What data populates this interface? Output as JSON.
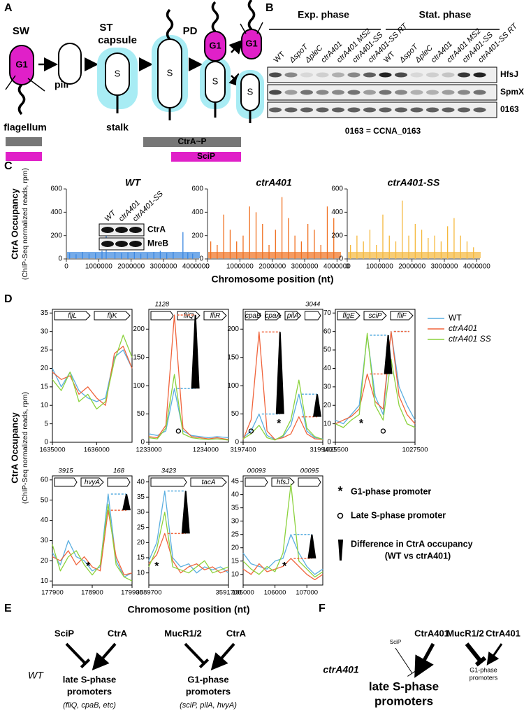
{
  "panel_a": {
    "label": "A",
    "stage_labels": [
      "SW",
      "ST",
      "PD"
    ],
    "capsule": "capsule",
    "pili": "pili",
    "flagellum": "flagellum",
    "stalk": "stalk",
    "g1": "G1",
    "s": "S",
    "bars": [
      "CtrA~P",
      "SciP"
    ]
  },
  "panel_b": {
    "label": "B",
    "phases": [
      "Exp. phase",
      "Stat. phase"
    ],
    "lanes": [
      "WT",
      "ΔspoT",
      "ΔpleC",
      "ctrA401",
      "ctrA401 MS2",
      "ctrA401-SS",
      "ctrA401-SS RT",
      "WT",
      "ΔspoT",
      "ΔpleC",
      "ctrA401",
      "ctrA401 MS2",
      "ctrA401-SS",
      "ctrA401-SS RT"
    ],
    "blots": [
      "HfsJ",
      "SpmX",
      "0163"
    ],
    "note": "0163 = CCNA_0163"
  },
  "panel_c": {
    "label": "C",
    "y_label": "CtrA Occupancy",
    "y_sublabel": "(ChIP-Seq normalized reads, rpm)",
    "x_label": "Chromosome position (nt)",
    "inset_lanes": [
      "WT",
      "ctrA401",
      "ctrA401-SS"
    ],
    "inset_blots": [
      "CtrA",
      "MreB"
    ],
    "charts": [
      {
        "type": "line",
        "title": "WT",
        "color": "#3b87e0",
        "xlim": [
          0,
          4100000
        ],
        "ylim": [
          0,
          600
        ],
        "yticks": [
          0,
          200,
          400,
          600
        ],
        "xticks": [
          0,
          1000000,
          2000000,
          3000000,
          4000000
        ],
        "x": [
          100000,
          300000,
          500000,
          700000,
          900000,
          1100000,
          1230000,
          1500000,
          1700000,
          1900000,
          2100000,
          2300000,
          2500000,
          2700000,
          2900000,
          3100000,
          3300000,
          3600000,
          3750000,
          3900000
        ],
        "values": [
          50,
          40,
          60,
          45,
          50,
          70,
          280,
          60,
          50,
          55,
          60,
          45,
          50,
          60,
          70,
          50,
          60,
          230,
          55,
          45
        ]
      },
      {
        "type": "line",
        "title": "ctrA401",
        "color": "#f07020",
        "xlim": [
          0,
          4100000
        ],
        "ylim": [
          0,
          600
        ],
        "yticks": [
          0,
          200,
          400,
          600
        ],
        "xticks": [
          0,
          1000000,
          2000000,
          3000000,
          4000000
        ],
        "x": [
          100000,
          300000,
          500000,
          700000,
          900000,
          1100000,
          1300000,
          1500000,
          1700000,
          1900000,
          2100000,
          2300000,
          2500000,
          2700000,
          2900000,
          3100000,
          3300000,
          3500000,
          3700000,
          3900000
        ],
        "values": [
          150,
          120,
          380,
          250,
          150,
          200,
          450,
          400,
          300,
          120,
          250,
          530,
          350,
          200,
          150,
          300,
          250,
          120,
          450,
          350
        ]
      },
      {
        "type": "line",
        "title": "ctrA401-SS",
        "color": "#f5b83c",
        "xlim": [
          0,
          4100000
        ],
        "ylim": [
          0,
          600
        ],
        "yticks": [
          0,
          200,
          400,
          600
        ],
        "xticks": [
          0,
          1000000,
          2000000,
          3000000,
          4000000
        ],
        "x": [
          100000,
          300000,
          500000,
          700000,
          900000,
          1100000,
          1300000,
          1500000,
          1700000,
          1900000,
          2100000,
          2300000,
          2500000,
          2700000,
          2900000,
          3100000,
          3300000,
          3500000,
          3700000,
          3900000
        ],
        "values": [
          120,
          200,
          150,
          250,
          120,
          380,
          200,
          150,
          500,
          200,
          300,
          250,
          180,
          200,
          150,
          280,
          350,
          200,
          150,
          100
        ]
      }
    ]
  },
  "panel_d": {
    "label": "D",
    "y_label": "CtrA Occupancy",
    "y_sublabel": "(ChIP-Seq normalized reads, rpm)",
    "x_label": "Chromosome position (nt)",
    "legend": [
      {
        "name": "WT",
        "color": "#5aaee0"
      },
      {
        "name": "ctrA401",
        "color": "#f0643c"
      },
      {
        "name": "ctrA401 SS",
        "color": "#8bd23c"
      }
    ],
    "key": [
      {
        "symbol": "*",
        "text": "G1-phase  promoter"
      },
      {
        "symbol": "o",
        "text": "Late S-phase promoter"
      },
      {
        "text": "Difference in CtrA occupancy",
        "subtext": "(WT vs ctrA401)"
      }
    ],
    "plots": [
      {
        "type": "line",
        "genes": [
          "fljL",
          "fljK"
        ],
        "xlim": [
          1635000,
          1636800
        ],
        "ylim": [
          0,
          36
        ],
        "yticks": [
          0,
          5,
          10,
          15,
          20,
          25,
          30,
          35
        ],
        "xticks": [
          1635000,
          1636000
        ],
        "x": [
          1635000,
          1635200,
          1635400,
          1635600,
          1635800,
          1636000,
          1636200,
          1636400,
          1636600,
          1636800
        ],
        "series": [
          [
            20,
            15,
            19,
            14,
            12,
            11,
            12,
            23,
            25,
            20
          ],
          [
            19,
            17,
            18,
            13,
            15,
            12,
            10,
            24,
            26,
            20
          ],
          [
            17,
            14,
            19,
            11,
            13,
            9,
            11,
            22,
            29,
            23
          ]
        ],
        "g1_promoters": [],
        "late_promoters": [],
        "diffs": []
      },
      {
        "type": "line",
        "genes": [
          "1128",
          "fliQ",
          "fliR"
        ],
        "xlim": [
          1233000,
          1234400
        ],
        "ylim": [
          0,
          235
        ],
        "yticks": [
          0,
          50,
          100,
          150,
          200
        ],
        "xticks": [
          1233000,
          1234000
        ],
        "x": [
          1233000,
          1233150,
          1233300,
          1233450,
          1233600,
          1233750,
          1233900,
          1234050,
          1234200,
          1234400
        ],
        "series": [
          [
            15,
            12,
            20,
            95,
            20,
            12,
            10,
            8,
            10,
            8
          ],
          [
            10,
            8,
            30,
            225,
            25,
            10,
            8,
            6,
            8,
            5
          ],
          [
            8,
            6,
            25,
            120,
            15,
            8,
            6,
            5,
            6,
            4
          ]
        ],
        "g1_promoters": [],
        "late_promoters": [
          1233520
        ],
        "diffs": [
          3
        ]
      },
      {
        "type": "line",
        "genes": [
          "cpaB",
          "cpaA",
          "pilA",
          "3044"
        ],
        "xlim": [
          3197400,
          3199400
        ],
        "ylim": [
          0,
          235
        ],
        "yticks": [
          0,
          50,
          100,
          150,
          200
        ],
        "xticks": [
          3197400,
          3199400
        ],
        "x": [
          3197400,
          3197600,
          3197800,
          3198000,
          3198200,
          3198400,
          3198600,
          3198800,
          3199000,
          3199200,
          3199400
        ],
        "series": [
          [
            8,
            20,
            50,
            12,
            5,
            10,
            30,
            85,
            20,
            8,
            6
          ],
          [
            5,
            40,
            195,
            20,
            5,
            8,
            15,
            45,
            15,
            6,
            5
          ],
          [
            6,
            15,
            30,
            8,
            4,
            12,
            40,
            110,
            25,
            10,
            5
          ]
        ],
        "g1_promoters": [
          3198300
        ],
        "late_promoters": [
          3197600
        ],
        "diffs": [
          2,
          7
        ]
      },
      {
        "type": "line",
        "genes": [
          "flgE",
          "sciP",
          "fliF"
        ],
        "xlim": [
          1025500,
          1027500
        ],
        "ylim": [
          0,
          72
        ],
        "yticks": [
          0,
          10,
          20,
          30,
          40,
          50,
          60,
          70
        ],
        "xticks": [
          1025500,
          1027500
        ],
        "x": [
          1025500,
          1025700,
          1025900,
          1026100,
          1026300,
          1026500,
          1026700,
          1026900,
          1027100,
          1027300,
          1027500
        ],
        "series": [
          [
            12,
            10,
            15,
            20,
            58,
            25,
            15,
            60,
            30,
            20,
            12
          ],
          [
            10,
            12,
            14,
            18,
            37,
            22,
            18,
            60,
            25,
            15,
            10
          ],
          [
            10,
            8,
            12,
            15,
            59,
            20,
            12,
            45,
            20,
            10,
            8
          ]
        ],
        "g1_promoters": [
          1026150
        ],
        "late_promoters": [
          1026700
        ],
        "diffs": [
          4,
          7
        ]
      },
      {
        "type": "line",
        "genes": [
          "3915",
          "hvyA",
          "168"
        ],
        "xlim": [
          177900,
          179900
        ],
        "ylim": [
          8,
          62
        ],
        "yticks": [
          10,
          20,
          30,
          40,
          50,
          60
        ],
        "xticks": [
          177900,
          178900,
          179900
        ],
        "x": [
          177900,
          178100,
          178300,
          178500,
          178700,
          178900,
          179100,
          179300,
          179500,
          179700,
          179900
        ],
        "series": [
          [
            24,
            18,
            30,
            22,
            20,
            15,
            17,
            53,
            20,
            12,
            14
          ],
          [
            22,
            20,
            25,
            18,
            22,
            17,
            15,
            45,
            22,
            13,
            14
          ],
          [
            28,
            15,
            22,
            25,
            18,
            13,
            18,
            48,
            18,
            12,
            10
          ]
        ],
        "g1_promoters": [
          178800
        ],
        "late_promoters": [],
        "diffs": [
          7
        ]
      },
      {
        "type": "line",
        "genes": [
          "3423",
          "tacA"
        ],
        "xlim": [
          3589700,
          3591700
        ],
        "ylim": [
          6,
          42
        ],
        "yticks": [
          10,
          15,
          20,
          25,
          30,
          35,
          40
        ],
        "xticks": [
          3589700,
          3591700
        ],
        "x": [
          3589700,
          3589900,
          3590100,
          3590300,
          3590500,
          3590700,
          3590900,
          3591100,
          3591300,
          3591500,
          3591700
        ],
        "series": [
          [
            14,
            20,
            37,
            15,
            12,
            13,
            10,
            12,
            11,
            12,
            10
          ],
          [
            13,
            16,
            23,
            14,
            10,
            12,
            13,
            11,
            12,
            10,
            11
          ],
          [
            12,
            18,
            30,
            12,
            11,
            10,
            12,
            14,
            10,
            11,
            12
          ]
        ],
        "g1_promoters": [
          3589900
        ],
        "late_promoters": [],
        "diffs": [
          2
        ]
      },
      {
        "type": "line",
        "genes": [
          "00093",
          "hfsJ",
          "00095"
        ],
        "xlim": [
          105000,
          107500
        ],
        "ylim": [
          6,
          47
        ],
        "yticks": [
          10,
          15,
          20,
          25,
          30,
          35,
          40,
          45
        ],
        "xticks": [
          105000,
          106000,
          107000
        ],
        "x": [
          105000,
          105250,
          105500,
          105750,
          106000,
          106250,
          106500,
          106750,
          107000,
          107250,
          107500
        ],
        "series": [
          [
            18,
            14,
            13,
            12,
            15,
            16,
            25,
            18,
            13,
            10,
            12
          ],
          [
            12,
            10,
            14,
            11,
            12,
            13,
            16,
            13,
            10,
            8,
            10
          ],
          [
            15,
            12,
            10,
            13,
            11,
            18,
            44,
            15,
            12,
            9,
            11
          ]
        ],
        "g1_promoters": [
          106300
        ],
        "late_promoters": [],
        "diffs": [
          6
        ]
      }
    ]
  },
  "panel_e": {
    "label": "E",
    "strain": "WT",
    "regulators": [
      "SciP",
      "CtrA",
      "MucR1/2",
      "CtrA"
    ],
    "late_target": [
      "late S-phase",
      "promoters"
    ],
    "late_examples": "(fliQ, cpaB, etc)",
    "g1_target": [
      "G1-phase",
      "promoters"
    ],
    "g1_examples": "(sciP, pilA, hvyA)"
  },
  "panel_f": {
    "label": "F",
    "strain": "ctrA401",
    "regulators": [
      "SciP",
      "CtrA401",
      "MucR1/2",
      "CtrA401"
    ],
    "late_target": [
      "late S-phase",
      "promoters"
    ],
    "g1_target": [
      "G1-phase",
      "promoters"
    ]
  }
}
